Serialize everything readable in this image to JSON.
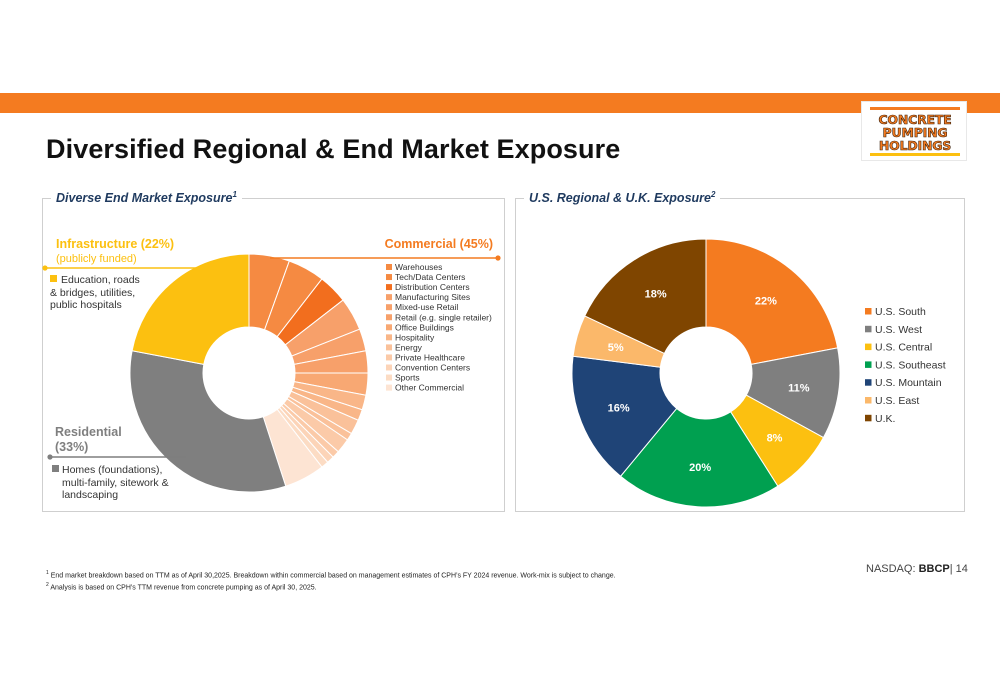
{
  "page": {
    "title": "Diversified Regional & End Market Exposure",
    "logo_lines": [
      "CONCRETE",
      "PUMPING",
      "HOLDINGS"
    ],
    "ticker_prefix": "NASDAQ:",
    "ticker": "BBCP",
    "page_number": "| 14",
    "footnote_1_marker": "1",
    "footnote_1": "End market breakdown based on TTM as of April 30,2025. Breakdown within commercial based on management estimates of CPH’s FY 2024 revenue. Work-mix is subject to change.",
    "footnote_2_marker": "2",
    "footnote_2": "Analysis is based on CPH’s TTM revenue from concrete pumping as of April 30, 2025.",
    "colors": {
      "accent_orange": "#f47b20",
      "navy": "#1f3a5f"
    }
  },
  "chart_data": [
    {
      "type": "pie",
      "title": "Diverse End Market Exposure",
      "title_superscript": "1",
      "donut": true,
      "segments": [
        {
          "name": "Commercial",
          "value": 45,
          "color": "#f47b20"
        },
        {
          "name": "Residential",
          "value": 33,
          "color": "#7f7f7f"
        },
        {
          "name": "Infrastructure",
          "value": 22,
          "color": "#fcc010"
        }
      ],
      "commercial_breakdown": [
        {
          "name": "Warehouses",
          "color": "#f58a42"
        },
        {
          "name": "Tech/Data Centers",
          "color": "#f58a42"
        },
        {
          "name": "Distribution Centers",
          "color": "#f26e1e"
        },
        {
          "name": "Manufacturing Sites",
          "color": "#f7a06a"
        },
        {
          "name": "Mixed-use Retail",
          "color": "#f7a06a"
        },
        {
          "name": "Retail (e.g. single retailer)",
          "color": "#f7a06a"
        },
        {
          "name": "Office Buildings",
          "color": "#f8a873"
        },
        {
          "name": "Hospitality",
          "color": "#f9b688"
        },
        {
          "name": "Energy",
          "color": "#fac19a"
        },
        {
          "name": "Private Healthcare",
          "color": "#fbcaa8"
        },
        {
          "name": "Convention Centers",
          "color": "#fcd4b8"
        },
        {
          "name": "Sports",
          "color": "#fcdcc4"
        },
        {
          "name": "Other Commercial",
          "color": "#fde4d3"
        }
      ],
      "commercial_slice_shares": [
        5.5,
        5,
        4,
        4.5,
        3,
        3,
        3,
        2,
        1.5,
        2,
        1,
        2,
        1,
        1,
        1,
        5.5
      ],
      "callouts": {
        "commercial": {
          "label": "Commercial  (45%)"
        },
        "infrastructure": {
          "label": "Infrastructure (22%)",
          "sub": "(publicly funded)",
          "desc": [
            "Education, roads",
            "& bridges, utilities,",
            "public hospitals"
          ]
        },
        "residential": {
          "label_lines": [
            "Residential",
            "(33%)"
          ],
          "desc": [
            "Homes (foundations),",
            "multi-family, sitework &",
            "landscaping"
          ]
        }
      }
    },
    {
      "type": "pie",
      "title": "U.S. Regional & U.K. Exposure",
      "title_superscript": "2",
      "donut": true,
      "segments": [
        {
          "name": "U.S. South",
          "value": 22,
          "label": "22%",
          "color": "#f47b20"
        },
        {
          "name": "U.S. West",
          "value": 11,
          "label": "11%",
          "color": "#7f7f7f"
        },
        {
          "name": "U.S. Central",
          "value": 8,
          "label": "8%",
          "color": "#fcc010"
        },
        {
          "name": "U.S. Southeast",
          "value": 20,
          "label": "20%",
          "color": "#00a050"
        },
        {
          "name": "U.S. Mountain",
          "value": 16,
          "label": "16%",
          "color": "#1f4477"
        },
        {
          "name": "U.S. East",
          "value": 5,
          "label": "5%",
          "color": "#fbb86a"
        },
        {
          "name": "U.K.",
          "value": 18,
          "label": "18%",
          "color": "#7f4500"
        }
      ],
      "legend_position": "right"
    }
  ]
}
